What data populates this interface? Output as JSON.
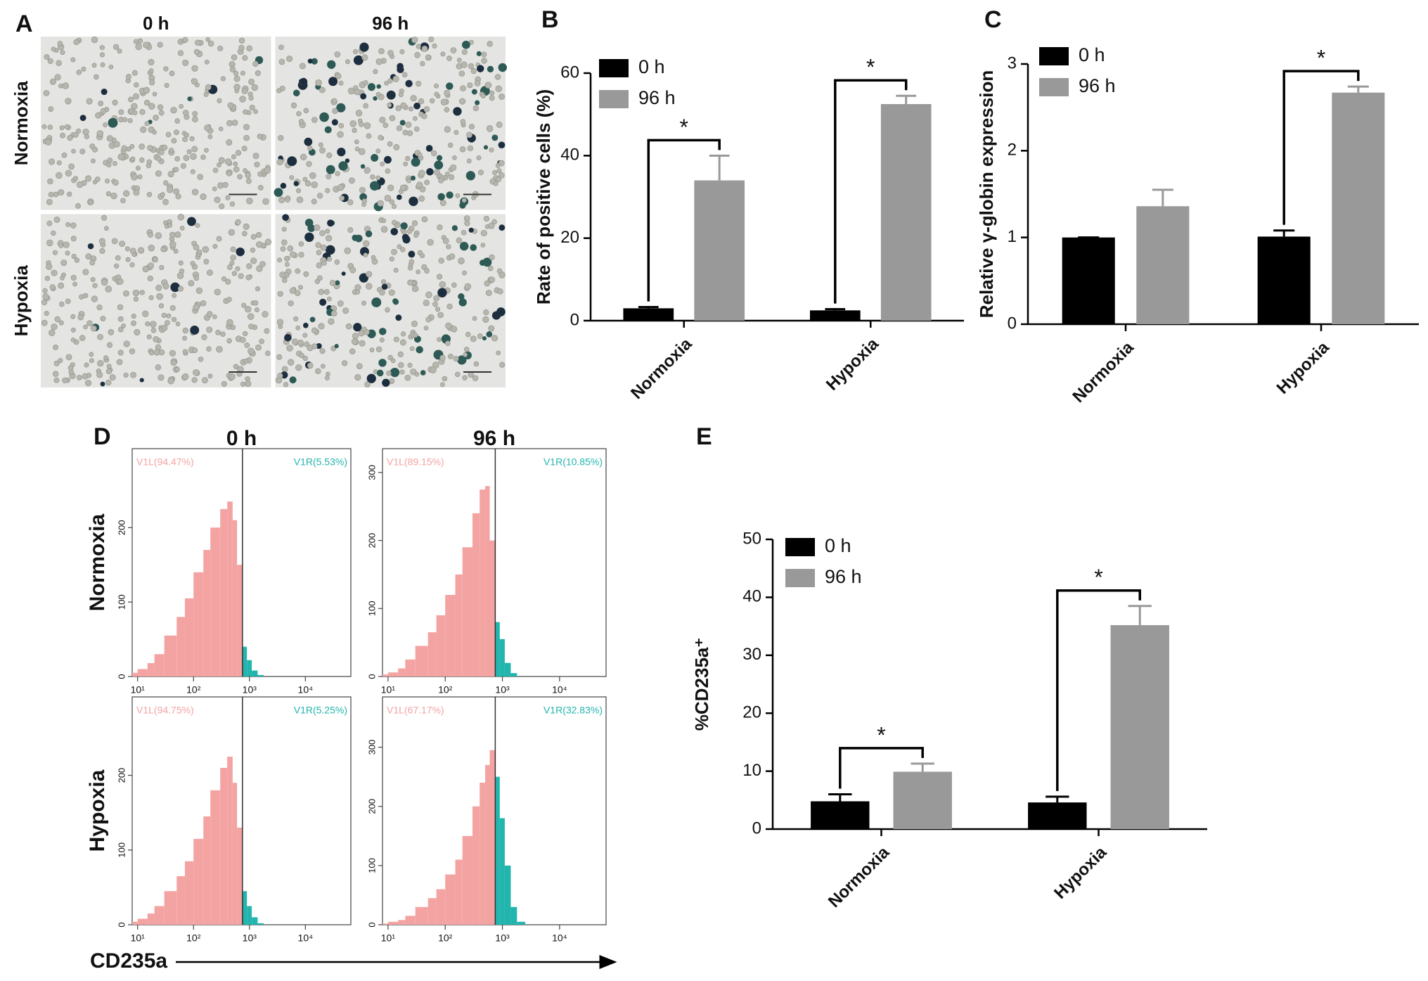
{
  "chart_data": [
    {
      "type": "micrograph",
      "panel": "A",
      "columns": [
        "0 h",
        "96 h"
      ],
      "rows": [
        "Normoxia",
        "Hypoxia"
      ]
    },
    {
      "type": "bar",
      "panel": "B",
      "ylabel": "Rate of positive cells (%)",
      "categories": [
        "Normoxia",
        "Hypoxia"
      ],
      "series": [
        {
          "name": "0 h",
          "color": "#000000",
          "values": [
            3,
            2.5
          ],
          "errors": [
            0.3,
            0.3
          ]
        },
        {
          "name": "96 h",
          "color": "#999999",
          "values": [
            34,
            52.5
          ],
          "errors": [
            6,
            2
          ]
        }
      ],
      "significance": [
        "*",
        "*"
      ],
      "ylim": [
        0,
        60
      ],
      "yticks": [
        0,
        20,
        40,
        60
      ]
    },
    {
      "type": "bar",
      "panel": "C",
      "ylabel": "Relative γ-globin expression",
      "categories": [
        "Normoxia",
        "Hypoxia"
      ],
      "series": [
        {
          "name": "0 h",
          "color": "#000000",
          "values": [
            1,
            1.01
          ],
          "errors": [
            0,
            0.07
          ]
        },
        {
          "name": "96 h",
          "color": "#999999",
          "values": [
            1.36,
            2.67
          ],
          "errors": [
            0.19,
            0.07
          ]
        }
      ],
      "significance": [
        null,
        "*"
      ],
      "ylim": [
        0,
        3
      ],
      "yticks": [
        0,
        1,
        2,
        3
      ]
    },
    {
      "type": "flow-histogram",
      "panel": "D",
      "columns": [
        "0 h",
        "96 h"
      ],
      "rows": [
        "Normoxia",
        "Hypoxia"
      ],
      "xlabel": "CD235a",
      "bins": [
        8,
        10,
        15,
        20,
        30,
        50,
        70,
        100,
        150,
        200,
        300,
        400,
        500,
        600,
        750,
        900,
        1100,
        1400,
        1800,
        2500
      ],
      "xlim": [
        8,
        65000
      ],
      "log_x": true,
      "xticks": [
        {
          "value": 10,
          "label": "10¹"
        },
        {
          "value": 100,
          "label": "10²"
        },
        {
          "value": 1000,
          "label": "10³"
        },
        {
          "value": 10000,
          "label": "10⁴"
        }
      ],
      "gate": 750,
      "colors": {
        "left": "#f4a3a3",
        "right": "#22b5ad"
      },
      "plots": [
        {
          "gate_labels": [
            "V1L(94.47%)",
            "V1R(5.53%)"
          ],
          "counts": [
            5,
            10,
            18,
            30,
            55,
            80,
            105,
            140,
            170,
            200,
            225,
            235,
            210,
            150,
            40,
            22,
            8,
            2,
            0
          ],
          "ylim": [
            0,
            306
          ],
          "yticks": [
            0,
            100,
            200
          ]
        },
        {
          "gate_labels": [
            "V1L(89.15%)",
            "V1R(10.85%)"
          ],
          "counts": [
            3,
            6,
            12,
            25,
            45,
            65,
            90,
            120,
            150,
            190,
            240,
            275,
            280,
            200,
            80,
            55,
            20,
            5,
            0
          ],
          "ylim": [
            0,
            335
          ],
          "yticks": [
            0,
            100,
            200,
            300
          ]
        },
        {
          "gate_labels": [
            "V1L(94.75%)",
            "V1R(5.25%)"
          ],
          "counts": [
            4,
            8,
            15,
            25,
            45,
            65,
            85,
            115,
            145,
            180,
            210,
            225,
            190,
            130,
            45,
            25,
            10,
            2,
            0
          ],
          "ylim": [
            0,
            305
          ],
          "yticks": [
            0,
            100,
            200
          ]
        },
        {
          "gate_labels": [
            "V1L(67.17%)",
            "V1R(32.83%)"
          ],
          "counts": [
            2,
            5,
            8,
            15,
            30,
            45,
            60,
            85,
            110,
            150,
            200,
            240,
            270,
            295,
            250,
            180,
            100,
            30,
            5
          ],
          "ylim": [
            0,
            385
          ],
          "yticks": [
            0,
            100,
            200,
            300
          ]
        }
      ]
    },
    {
      "type": "bar",
      "panel": "E",
      "ylabel": "%CD235a⁺",
      "categories": [
        "Normoxia",
        "Hypoxia"
      ],
      "series": [
        {
          "name": "0 h",
          "color": "#000000",
          "values": [
            4.8,
            4.6
          ],
          "errors": [
            1.2,
            1
          ]
        },
        {
          "name": "96 h",
          "color": "#999999",
          "values": [
            9.9,
            35.2
          ],
          "errors": [
            1.4,
            3.3
          ]
        }
      ],
      "significance": [
        "*",
        "*"
      ],
      "ylim": [
        0,
        50
      ],
      "yticks": [
        0,
        10,
        20,
        30,
        40,
        50
      ]
    }
  ]
}
